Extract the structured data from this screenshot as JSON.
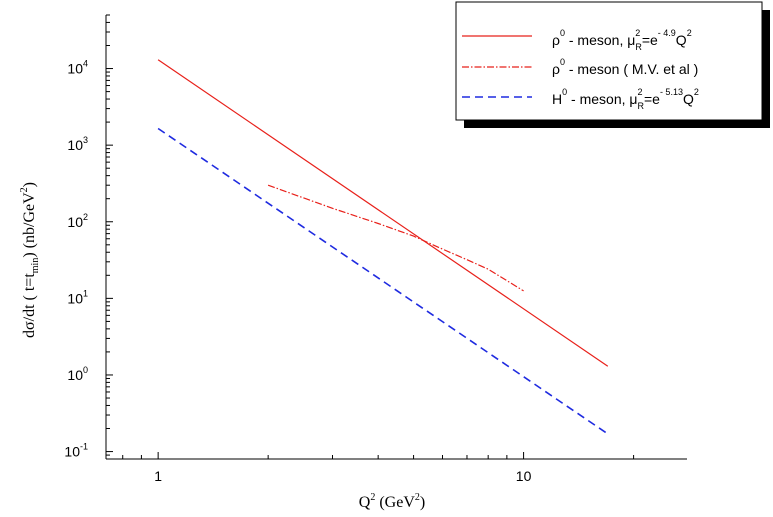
{
  "chart_data": {
    "type": "line",
    "x_scale": "log",
    "y_scale": "log",
    "xlim": [
      0.72,
      28
    ],
    "ylim": [
      0.08,
      50000
    ],
    "xlabel": {
      "main": "Q",
      "sup": "2",
      "rest1": " (GeV",
      "sup2": "2",
      "rest2": ")"
    },
    "ylabel": {
      "main": "dσ/dt ( t=t",
      "sub": "min",
      "rest": ") (nb/GeV",
      "sup": "2",
      "end": ")"
    },
    "x_ticks": [
      {
        "value": 1,
        "label": "1"
      },
      {
        "value": 10,
        "label": "10"
      }
    ],
    "y_ticks": [
      {
        "value": 0.1,
        "base": "10",
        "exp": "-1"
      },
      {
        "value": 1,
        "base": "10",
        "exp": "0"
      },
      {
        "value": 10,
        "base": "10",
        "exp": "1"
      },
      {
        "value": 100,
        "base": "10",
        "exp": "2"
      },
      {
        "value": 1000,
        "base": "10",
        "exp": "3"
      },
      {
        "value": 10000,
        "base": "10",
        "exp": "4"
      }
    ],
    "series": [
      {
        "name": "ρ0 - meson, μ2R=e-4.9Q2",
        "color": "#e8201a",
        "style": "solid",
        "x": [
          1,
          17
        ],
        "y": [
          13000,
          1.3
        ]
      },
      {
        "name": "ρ0 - meson ( M.V. et al )",
        "color": "#e8201a",
        "style": "dashdot",
        "x": [
          2,
          3,
          4,
          5,
          6,
          7,
          8,
          10
        ],
        "y": [
          300,
          150,
          95,
          65,
          44,
          32,
          24,
          12.5
        ]
      },
      {
        "name": "H0 - meson, μ2R=e-5.13Q2",
        "color": "#1f2be0",
        "style": "dashed",
        "x": [
          1,
          17
        ],
        "y": [
          1650,
          0.17
        ]
      }
    ],
    "legend": {
      "position": "top-right",
      "entries": [
        {
          "pre": "ρ",
          "pre_sup": "0",
          "mid": " - meson, μ",
          "mid_sup": "2",
          "mid_sub": "R",
          "post": "=e",
          "post_sup": "- 4.9",
          "end": "Q",
          "end_sup": "2"
        },
        {
          "pre": "ρ",
          "pre_sup": "0",
          "mid": " - meson ( M.V. et al )"
        },
        {
          "pre": "H",
          "pre_sup": "0",
          "mid": " - meson,  μ",
          "mid_sup": "2",
          "mid_sub": "R",
          "post": "=e",
          "post_sup": "- 5.13",
          "end": "Q",
          "end_sup": "2"
        }
      ]
    }
  }
}
